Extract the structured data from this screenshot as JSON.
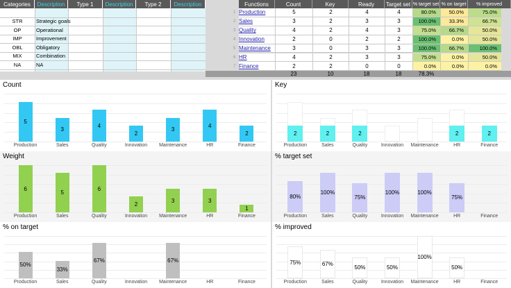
{
  "categories_table": {
    "headers": [
      "Categories",
      "Description",
      "Type 1",
      "Description",
      "Type 2",
      "Description"
    ],
    "rows": [
      {
        "code": "STR",
        "desc": "Strategic goals"
      },
      {
        "code": "OP",
        "desc": "Operational"
      },
      {
        "code": "IMP",
        "desc": "Improvement"
      },
      {
        "code": "OBL",
        "desc": "Obligatory"
      },
      {
        "code": "MIX",
        "desc": "Combination"
      },
      {
        "code": "NA",
        "desc": "NA"
      }
    ]
  },
  "functions_table": {
    "headers": [
      "Functions",
      "Count",
      "Key",
      "Ready",
      "Target set",
      "% target set",
      "% on target",
      "% improved"
    ],
    "rows": [
      {
        "num": "1",
        "name": "Production",
        "count": "5",
        "key": "2",
        "ready": "4",
        "target": "4",
        "p1": "80.0%",
        "p2": "50.0%",
        "p3": "75.0%",
        "c1": "#b6d98a",
        "c2": "#fde99a",
        "c3": "#bcdc8c"
      },
      {
        "num": "2",
        "name": "Sales",
        "count": "3",
        "key": "2",
        "ready": "3",
        "target": "3",
        "p1": "100.0%",
        "p2": "33.3%",
        "p3": "66.7%",
        "c1": "#6bbf71",
        "c2": "#fde99a",
        "c3": "#cfe393"
      },
      {
        "num": "3",
        "name": "Quality",
        "count": "4",
        "key": "2",
        "ready": "4",
        "target": "3",
        "p1": "75.0%",
        "p2": "66.7%",
        "p3": "50.0%",
        "c1": "#c4df8e",
        "c2": "#b7d98a",
        "c3": "#e6e69a"
      },
      {
        "num": "4",
        "name": "Innovation",
        "count": "2",
        "key": "0",
        "ready": "2",
        "target": "2",
        "p1": "100.0%",
        "p2": "0.0%",
        "p3": "50.0%",
        "c1": "#6bbf71",
        "c2": "#fdf2a3",
        "c3": "#e6e69a"
      },
      {
        "num": "5",
        "name": "Maintenance",
        "count": "3",
        "key": "0",
        "ready": "3",
        "target": "3",
        "p1": "100.0%",
        "p2": "66.7%",
        "p3": "100.0%",
        "c1": "#6bbf71",
        "c2": "#b7d98a",
        "c3": "#6bbf71"
      },
      {
        "num": "6",
        "name": "HR",
        "count": "4",
        "key": "2",
        "ready": "3",
        "target": "3",
        "p1": "75.0%",
        "p2": "0.0%",
        "p3": "50.0%",
        "c1": "#c4df8e",
        "c2": "#fdf2a3",
        "c3": "#e6e69a"
      },
      {
        "num": "7",
        "name": "Finance",
        "count": "2",
        "key": "2",
        "ready": "0",
        "target": "0",
        "p1": "0.0%",
        "p2": "0.0%",
        "p3": "0.0%",
        "c1": "#fdf2a3",
        "c2": "#fdf2a3",
        "c3": "#fdf2a3"
      }
    ],
    "totals": {
      "count": "23",
      "key": "10",
      "ready": "18",
      "target": "18",
      "p1": "78.3%"
    }
  },
  "chart_data": [
    {
      "type": "bar",
      "title": "Count",
      "categories": [
        "Production",
        "Sales",
        "Quality",
        "Innovation",
        "Maintenance",
        "HR",
        "Finance"
      ],
      "values": [
        5,
        3,
        4,
        2,
        3,
        4,
        2
      ],
      "labels": [
        "5",
        "3",
        "4",
        "2",
        "3",
        "4",
        "2"
      ],
      "ylim": [
        0,
        6
      ],
      "color": "#33c8f3"
    },
    {
      "type": "bar",
      "title": "Key",
      "categories": [
        "Production",
        "Sales",
        "Quality",
        "Innovation",
        "Maintenance",
        "HR",
        "Finance"
      ],
      "stacked": true,
      "values": [
        2,
        2,
        2,
        0,
        0,
        2,
        2
      ],
      "totals": [
        5,
        3,
        4,
        2,
        3,
        4,
        2
      ],
      "labels": [
        "2",
        "2",
        "2",
        "",
        "",
        "2",
        "2"
      ],
      "ylim": [
        0,
        6
      ],
      "color": "#5ff0ef"
    },
    {
      "type": "bar",
      "title": "Weight",
      "categories": [
        "Production",
        "Sales",
        "Quality",
        "Innovation",
        "Maintenance",
        "HR",
        "Finance"
      ],
      "values": [
        6,
        5,
        6,
        2,
        3,
        3,
        1
      ],
      "labels": [
        "6",
        "5",
        "6",
        "2",
        "3",
        "3",
        "1"
      ],
      "ylim": [
        0,
        6
      ],
      "color": "#92d050"
    },
    {
      "type": "bar",
      "title": "% target set",
      "categories": [
        "Production",
        "Sales",
        "Quality",
        "Innovation",
        "Maintenance",
        "HR",
        "Finance"
      ],
      "values": [
        80,
        100,
        75,
        100,
        100,
        75,
        0
      ],
      "labels": [
        "80%",
        "100%",
        "75%",
        "100%",
        "100%",
        "75%",
        ""
      ],
      "ylim": [
        0,
        120
      ],
      "color": "#ccccf7"
    },
    {
      "type": "bar",
      "title": "% on target",
      "categories": [
        "Production",
        "Sales",
        "Quality",
        "Innovation",
        "Maintenance",
        "HR",
        "Finance"
      ],
      "values": [
        50,
        33,
        67,
        0,
        67,
        0,
        0
      ],
      "labels": [
        "50%",
        "33%",
        "67%",
        "",
        "67%",
        "",
        ""
      ],
      "ylim": [
        0,
        80
      ],
      "color": "#bfbfbf"
    },
    {
      "type": "bar",
      "title": "% improved",
      "categories": [
        "Production",
        "Sales",
        "Quality",
        "Innovation",
        "Maintenance",
        "HR",
        "Finance"
      ],
      "values": [
        75,
        67,
        50,
        50,
        100,
        50,
        0
      ],
      "labels": [
        "75%",
        "67%",
        "50%",
        "50%",
        "100%",
        "50%",
        ""
      ],
      "ylim": [
        0,
        100
      ],
      "color": "#ffffff"
    }
  ]
}
